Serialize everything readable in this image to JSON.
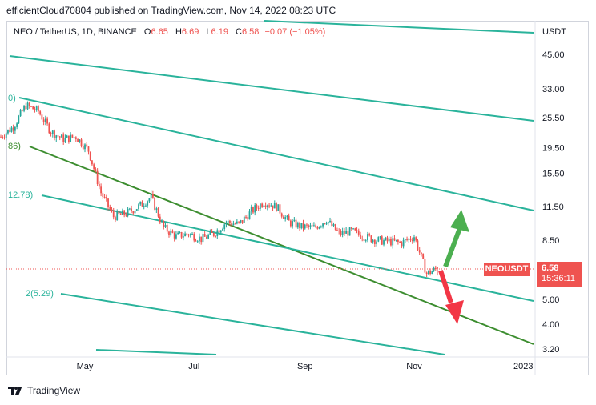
{
  "header": {
    "text": "efficientCloud70804 published on TradingView.com, Nov 14, 2022 08:23 UTC"
  },
  "legend": {
    "symbol": "NEO / TetherUS, 1D, BINANCE",
    "open_label": "O",
    "open": "6.65",
    "high_label": "H",
    "high": "6.69",
    "low_label": "L",
    "low": "6.19",
    "close_label": "C",
    "close": "6.58",
    "change": "−0.07 (−1.05%)"
  },
  "price_axis": {
    "unit": "USDT",
    "ticks": [
      "45.00",
      "33.00",
      "25.50",
      "19.50",
      "15.50",
      "11.50",
      "8.50",
      "5.00",
      "4.00",
      "3.20"
    ]
  },
  "time_axis": {
    "ticks": [
      "May",
      "Jul",
      "Sep",
      "Nov",
      "2023"
    ]
  },
  "channel_labels": [
    "0)",
    "86)",
    "12.78)",
    "2(5.29)"
  ],
  "badge": {
    "symbol": "NEOUSDT",
    "price": "6.58",
    "countdown": "15:36:11"
  },
  "footer": {
    "brand": "TradingView"
  },
  "colors": {
    "up": "#26a69a",
    "down": "#ef5350",
    "channel": "#2ab39b",
    "median": "#3c8d2f",
    "arrow_up": "#4caf50",
    "arrow_down": "#f23645"
  },
  "chart_data": {
    "type": "candlestick",
    "title": "",
    "y_scale": "log",
    "last_price": 6.58,
    "series_close": [
      {
        "date": "2022-03-15",
        "close": 21.5
      },
      {
        "date": "2022-03-22",
        "close": 23.5
      },
      {
        "date": "2022-03-29",
        "close": 28.5
      },
      {
        "date": "2022-04-05",
        "close": 27.0
      },
      {
        "date": "2022-04-12",
        "close": 22.5
      },
      {
        "date": "2022-04-19",
        "close": 21.0
      },
      {
        "date": "2022-04-26",
        "close": 21.5
      },
      {
        "date": "2022-05-03",
        "close": 19.0
      },
      {
        "date": "2022-05-10",
        "close": 13.0
      },
      {
        "date": "2022-05-17",
        "close": 10.5
      },
      {
        "date": "2022-05-24",
        "close": 10.8
      },
      {
        "date": "2022-05-31",
        "close": 11.5
      },
      {
        "date": "2022-06-07",
        "close": 12.5
      },
      {
        "date": "2022-06-14",
        "close": 9.5
      },
      {
        "date": "2022-06-21",
        "close": 8.8
      },
      {
        "date": "2022-06-28",
        "close": 9.0
      },
      {
        "date": "2022-07-05",
        "close": 8.6
      },
      {
        "date": "2022-07-12",
        "close": 9.0
      },
      {
        "date": "2022-07-19",
        "close": 10.0
      },
      {
        "date": "2022-07-26",
        "close": 9.8
      },
      {
        "date": "2022-08-02",
        "close": 11.0
      },
      {
        "date": "2022-08-09",
        "close": 12.0
      },
      {
        "date": "2022-08-16",
        "close": 11.5
      },
      {
        "date": "2022-08-23",
        "close": 10.0
      },
      {
        "date": "2022-08-30",
        "close": 9.6
      },
      {
        "date": "2022-09-06",
        "close": 9.5
      },
      {
        "date": "2022-09-13",
        "close": 10.2
      },
      {
        "date": "2022-09-20",
        "close": 9.0
      },
      {
        "date": "2022-09-27",
        "close": 9.2
      },
      {
        "date": "2022-10-04",
        "close": 8.8
      },
      {
        "date": "2022-10-11",
        "close": 8.5
      },
      {
        "date": "2022-10-18",
        "close": 8.4
      },
      {
        "date": "2022-10-25",
        "close": 8.3
      },
      {
        "date": "2022-11-01",
        "close": 8.8
      },
      {
        "date": "2022-11-08",
        "close": 6.3
      },
      {
        "date": "2022-11-14",
        "close": 6.58
      }
    ]
  }
}
